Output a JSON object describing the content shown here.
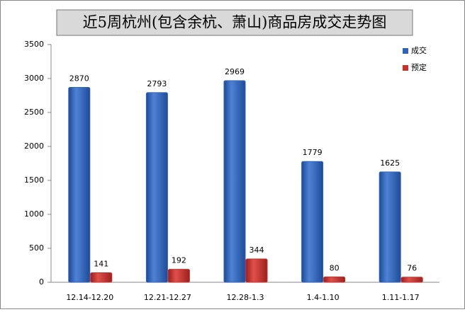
{
  "chart_data": {
    "type": "bar",
    "title": "近5周杭州(包含余杭、萧山)商品房成交走势图",
    "categories": [
      "12.14-12.20",
      "12.21-12.27",
      "12.28-1.3",
      "1.4-1.10",
      "1.11-1.17"
    ],
    "series": [
      {
        "name": "成交",
        "color": "#2f62b8",
        "values": [
          2870,
          2793,
          2969,
          1779,
          1625
        ]
      },
      {
        "name": "预定",
        "color": "#c8302c",
        "values": [
          141,
          192,
          344,
          80,
          76
        ]
      }
    ],
    "ylim": [
      0,
      3500
    ],
    "yticks": [
      0,
      500,
      1000,
      1500,
      2000,
      2500,
      3000,
      3500
    ],
    "grid": false,
    "legend": "top-right"
  }
}
